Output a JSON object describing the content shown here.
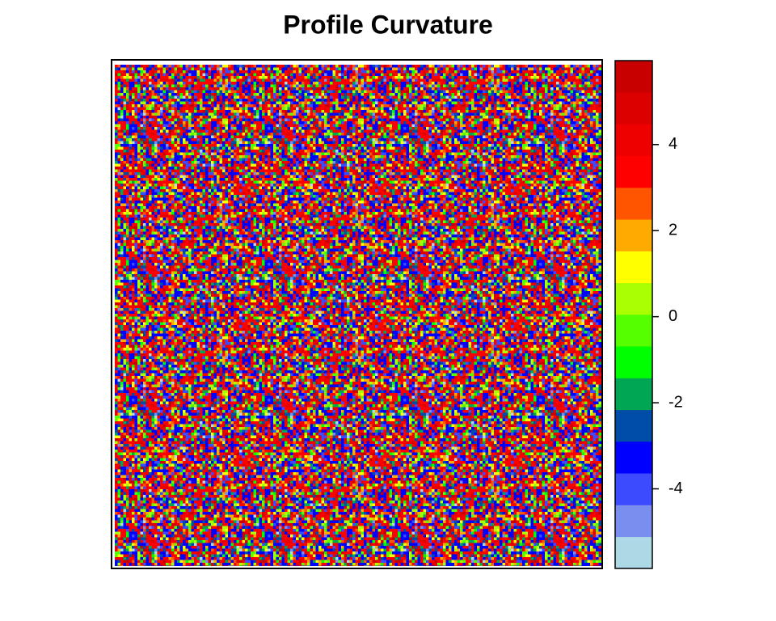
{
  "chart_data": {
    "type": "raster",
    "title": "Profile Curvature",
    "colorbar": {
      "colors": [
        "#ADD8E6",
        "#7A8EF0",
        "#3D4BFF",
        "#0000FF",
        "#004DA8",
        "#00A651",
        "#00FF00",
        "#55FF00",
        "#AAFF00",
        "#FFFF00",
        "#FFAA00",
        "#FF5500",
        "#FF0000",
        "#EE0000",
        "#DD0000",
        "#C80000"
      ],
      "lim": [
        -5.85,
        5.95
      ],
      "ticks": [
        -4,
        -2,
        0,
        2,
        4
      ]
    }
  }
}
